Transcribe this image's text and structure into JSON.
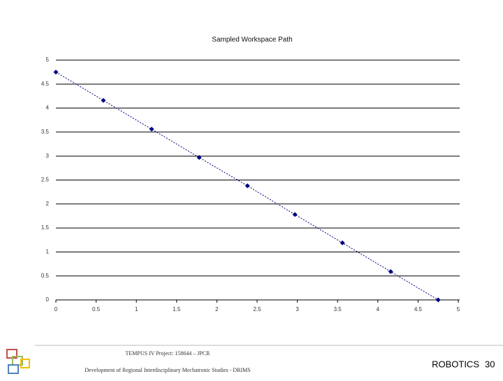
{
  "chart_data": {
    "type": "line",
    "title": "Sampled Workspace Path",
    "x": [
      0,
      0.59,
      1.19,
      1.78,
      2.38,
      2.97,
      3.56,
      4.16,
      4.75
    ],
    "values": [
      4.75,
      4.16,
      3.56,
      2.97,
      2.38,
      1.78,
      1.19,
      0.59,
      0
    ],
    "color": "#000080",
    "xlim": [
      0,
      5
    ],
    "xticks": [
      0,
      0.5,
      1,
      1.5,
      2,
      2.5,
      3,
      3.5,
      4,
      4.5,
      5
    ],
    "ylim": [
      0,
      5
    ],
    "yticks": [
      0,
      0.5,
      1,
      1.5,
      2,
      2.5,
      3,
      3.5,
      4,
      4.5,
      5
    ],
    "grid": true
  },
  "footer": {
    "project": "TEMPUS IV Project: 158644 – JPCR",
    "program": "Development of Regional Interdisciplinary Mechatronic Studies - DRIMS",
    "course": "ROBOTICS",
    "page": "30"
  }
}
